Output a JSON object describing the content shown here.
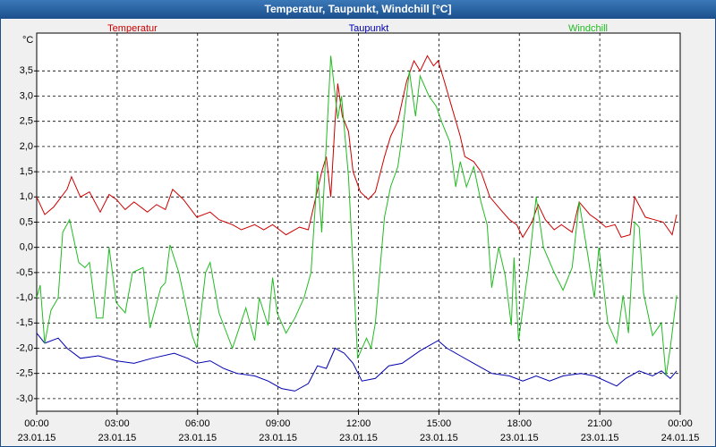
{
  "chart_data": {
    "type": "line",
    "title": "Temperatur, Taupunkt, Windchill [°C]",
    "y_label": "°C",
    "xlim": [
      0,
      24
    ],
    "ylim": [
      -3.25,
      4.25
    ],
    "grid": true,
    "xticks": [
      {
        "value": 0,
        "label": "00:00",
        "date": "23.01.15"
      },
      {
        "value": 3,
        "label": "03:00",
        "date": "23.01.15"
      },
      {
        "value": 6,
        "label": "06:00",
        "date": "23.01.15"
      },
      {
        "value": 9,
        "label": "09:00",
        "date": "23.01.15"
      },
      {
        "value": 12,
        "label": "12:00",
        "date": "23.01.15"
      },
      {
        "value": 15,
        "label": "15:00",
        "date": "23.01.15"
      },
      {
        "value": 18,
        "label": "18:00",
        "date": "23.01.15"
      },
      {
        "value": 21,
        "label": "21:00",
        "date": "23.01.15"
      },
      {
        "value": 24,
        "label": "00:00",
        "date": "24.01.15"
      }
    ],
    "yticks": [
      {
        "value": -3,
        "label": "-3,0"
      },
      {
        "value": -2.5,
        "label": "-2,5"
      },
      {
        "value": -2,
        "label": "-2,0"
      },
      {
        "value": -1.5,
        "label": "-1,5"
      },
      {
        "value": -1,
        "label": "-1,0"
      },
      {
        "value": -0.5,
        "label": "-0,5"
      },
      {
        "value": 0,
        "label": "0,0"
      },
      {
        "value": 0.5,
        "label": "0,5"
      },
      {
        "value": 1,
        "label": "1,0"
      },
      {
        "value": 1.5,
        "label": "1,5"
      },
      {
        "value": 2,
        "label": "2,0"
      },
      {
        "value": 2.5,
        "label": "2,5"
      },
      {
        "value": 3,
        "label": "3,0"
      },
      {
        "value": 3.5,
        "label": "3,5"
      }
    ],
    "series": [
      {
        "name": "Temperatur",
        "color": "#cc0000",
        "x": [
          0,
          0.3,
          0.63,
          1.13,
          1.3,
          1.63,
          1.97,
          2.37,
          2.7,
          2.97,
          3.3,
          3.63,
          4.13,
          4.47,
          4.8,
          5.07,
          5.47,
          5.97,
          6.47,
          6.8,
          7.3,
          7.63,
          8.13,
          8.47,
          8.8,
          9.3,
          9.8,
          10.13,
          10.63,
          10.8,
          10.97,
          11.13,
          11.23,
          11.4,
          11.63,
          11.8,
          12.07,
          12.37,
          12.63,
          12.97,
          13.2,
          13.47,
          13.8,
          14.07,
          14.3,
          14.57,
          14.8,
          14.97,
          15.2,
          15.47,
          15.8,
          15.97,
          16.3,
          16.57,
          16.9,
          17.3,
          17.63,
          17.9,
          18.13,
          18.47,
          18.7,
          18.97,
          19.3,
          19.57,
          19.97,
          20.23,
          20.63,
          20.9,
          21.23,
          21.57,
          21.8,
          22.13,
          22.3,
          22.7,
          23.03,
          23.37,
          23.7,
          23.87
        ],
        "values": [
          1.0,
          0.65,
          0.8,
          1.15,
          1.4,
          1.0,
          1.1,
          0.7,
          1.05,
          0.95,
          0.75,
          0.9,
          0.7,
          0.85,
          0.75,
          1.15,
          0.95,
          0.6,
          0.7,
          0.55,
          0.45,
          0.35,
          0.45,
          0.35,
          0.45,
          0.25,
          0.4,
          0.35,
          1.5,
          1.8,
          1.0,
          2.5,
          3.25,
          2.6,
          2.3,
          1.5,
          1.1,
          0.95,
          1.1,
          1.8,
          2.2,
          2.5,
          3.3,
          3.7,
          3.5,
          3.8,
          3.6,
          3.7,
          3.3,
          2.8,
          2.2,
          1.8,
          1.7,
          1.5,
          1.0,
          0.75,
          0.55,
          0.45,
          0.2,
          0.5,
          0.85,
          0.55,
          0.35,
          0.45,
          0.3,
          0.9,
          0.65,
          0.55,
          0.4,
          0.45,
          0.2,
          0.25,
          1.0,
          0.6,
          0.55,
          0.5,
          0.25,
          0.65
        ]
      },
      {
        "name": "Taupunkt",
        "color": "#0000b0",
        "x": [
          0,
          0.3,
          0.8,
          1.13,
          1.63,
          2.3,
          2.97,
          3.63,
          4.3,
          5.13,
          5.63,
          5.97,
          6.47,
          6.97,
          7.47,
          8.13,
          8.63,
          9.13,
          9.63,
          10.13,
          10.47,
          10.8,
          11.13,
          11.47,
          11.8,
          12.13,
          12.63,
          13.13,
          13.63,
          14.3,
          14.97,
          15.3,
          15.8,
          16.3,
          16.97,
          17.63,
          18.13,
          18.63,
          19.13,
          19.63,
          20.3,
          20.8,
          21.63,
          21.97,
          22.47,
          22.97,
          23.3,
          23.63,
          23.87
        ],
        "values": [
          -1.7,
          -1.9,
          -1.8,
          -2.0,
          -2.2,
          -2.15,
          -2.25,
          -2.3,
          -2.2,
          -2.1,
          -2.2,
          -2.3,
          -2.25,
          -2.4,
          -2.5,
          -2.55,
          -2.65,
          -2.8,
          -2.85,
          -2.7,
          -2.35,
          -2.4,
          -2.0,
          -2.1,
          -2.3,
          -2.65,
          -2.6,
          -2.35,
          -2.3,
          -2.05,
          -1.85,
          -2.0,
          -2.15,
          -2.3,
          -2.5,
          -2.55,
          -2.65,
          -2.55,
          -2.65,
          -2.55,
          -2.5,
          -2.55,
          -2.75,
          -2.6,
          -2.45,
          -2.55,
          -2.45,
          -2.6,
          -2.45
        ]
      },
      {
        "name": "Windchill",
        "color": "#22bb22",
        "x": [
          0,
          0.13,
          0.3,
          0.53,
          0.8,
          0.97,
          1.23,
          1.57,
          1.8,
          1.97,
          2.23,
          2.47,
          2.7,
          2.97,
          3.3,
          3.57,
          3.97,
          4.23,
          4.63,
          4.8,
          4.97,
          5.3,
          5.8,
          5.97,
          6.3,
          6.47,
          6.8,
          7.3,
          7.8,
          8.13,
          8.3,
          8.63,
          8.8,
          8.97,
          9.3,
          9.63,
          9.97,
          10.23,
          10.47,
          10.63,
          10.97,
          11.23,
          11.37,
          11.63,
          11.97,
          12.3,
          12.47,
          12.63,
          12.97,
          13.2,
          13.47,
          13.63,
          13.9,
          14.13,
          14.3,
          14.63,
          14.9,
          15.13,
          15.4,
          15.63,
          15.8,
          16.03,
          16.3,
          16.57,
          16.8,
          16.97,
          17.23,
          17.47,
          17.7,
          17.8,
          17.97,
          18.37,
          18.63,
          18.9,
          19.3,
          19.63,
          19.97,
          20.23,
          20.57,
          20.8,
          20.97,
          21.3,
          21.63,
          21.87,
          22.07,
          22.3,
          22.47,
          22.63,
          22.97,
          23.3,
          23.47,
          23.63,
          23.87
        ],
        "values": [
          -1.0,
          -0.75,
          -1.9,
          -1.25,
          -1.0,
          0.3,
          0.55,
          -0.3,
          -0.4,
          -0.3,
          -1.4,
          -1.4,
          0.0,
          -1.1,
          -1.3,
          -0.5,
          -0.4,
          -1.6,
          -0.8,
          -0.7,
          0.05,
          -0.5,
          -1.75,
          -2.0,
          -0.5,
          -0.3,
          -1.3,
          -2.0,
          -1.2,
          -1.85,
          -1.0,
          -1.55,
          -0.6,
          -1.3,
          -1.7,
          -1.4,
          -1.0,
          -0.5,
          1.5,
          0.3,
          3.8,
          2.55,
          3.0,
          1.4,
          -2.2,
          -1.8,
          -2.0,
          -1.5,
          0.6,
          1.2,
          1.6,
          2.2,
          3.5,
          2.6,
          3.4,
          3.0,
          2.8,
          2.45,
          2.1,
          1.2,
          1.7,
          1.2,
          1.6,
          0.9,
          0.45,
          -0.8,
          0.0,
          -0.55,
          -1.55,
          -0.2,
          -1.85,
          -0.3,
          1.0,
          0.0,
          -0.5,
          -0.85,
          -0.4,
          0.9,
          -0.2,
          -1.0,
          0.0,
          -1.5,
          -1.9,
          -0.95,
          -1.7,
          0.5,
          0.4,
          -0.9,
          -1.75,
          -1.5,
          -2.55,
          -2.0,
          -0.95
        ]
      }
    ]
  }
}
